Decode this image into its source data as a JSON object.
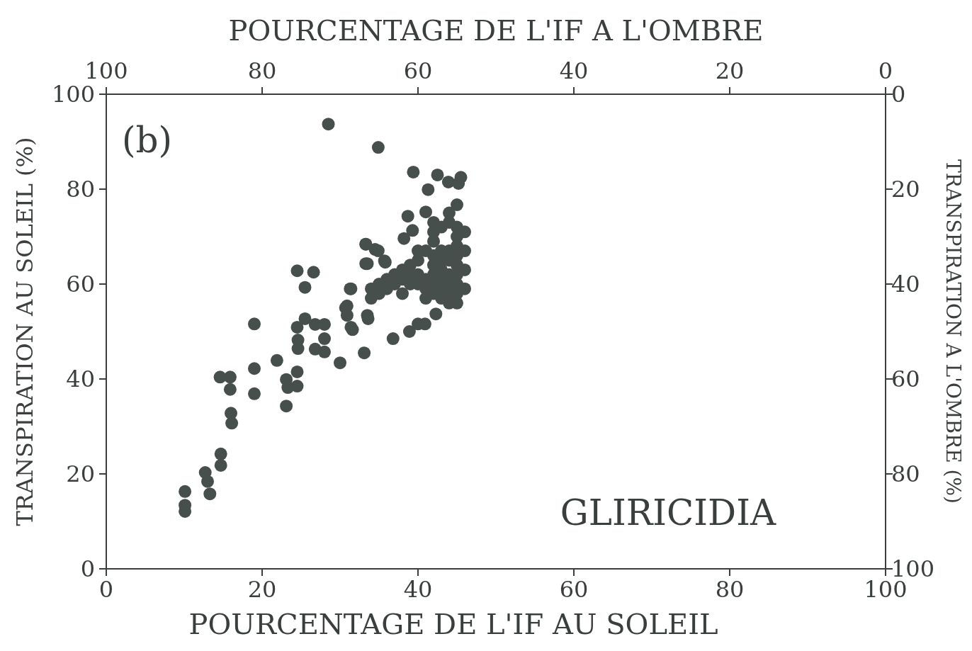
{
  "chart_data": {
    "type": "scatter",
    "xlabel": "POURCENTAGE DE L'IF AU SOLEIL",
    "ylabel": "TRANSPIRATION AU SOLEIL (%)",
    "x2label": "POURCENTAGE DE L'IF A L'OMBRE",
    "y2label": "TRANSPIRATION A L'OMBRE (%)",
    "annotations": [
      "(b)",
      "GLIRICIDIA"
    ],
    "xlim": [
      0,
      100
    ],
    "xticks": [
      0,
      20,
      40,
      60,
      80,
      100
    ],
    "ylim": [
      0,
      100
    ],
    "yticks": [
      0,
      20,
      40,
      60,
      80,
      100
    ],
    "x2lim": [
      100,
      0
    ],
    "x2ticks": [
      100,
      80,
      60,
      40,
      20,
      0
    ],
    "y2lim": [
      100,
      0
    ],
    "y2ticks": [
      0,
      20,
      40,
      60,
      80,
      100
    ],
    "grid": false,
    "marker": "circle",
    "series": [
      {
        "color": "#474f4c",
        "x": [
          10.1,
          10.1,
          10.1,
          12.7,
          13,
          13.3,
          14.7,
          14.7,
          14.6,
          15.9,
          15.9,
          16,
          16.1,
          19,
          19,
          19,
          21.9,
          23.1,
          23.1,
          23.3,
          24.5,
          24.5,
          24.5,
          26.6,
          25.5,
          24.5,
          25.5,
          24.6,
          24.6,
          26.8,
          28,
          28,
          26.8,
          28,
          30,
          33.1,
          28.5,
          34.9,
          30.9,
          31.4,
          31.4,
          30.9,
          33.3,
          33.3,
          34.5,
          35.7,
          33.6,
          36.8,
          38.9,
          40,
          40.9,
          42.3,
          39.4,
          42.5,
          43.9,
          45.5,
          45.2,
          41.3,
          45,
          38.7,
          41,
          39.3,
          38.2,
          33.3,
          34.9,
          33.5,
          35.8,
          31.3,
          30.7,
          31.6,
          33.5,
          34,
          35,
          36,
          37,
          36,
          38,
          37,
          38,
          39,
          39,
          40,
          39,
          40,
          40,
          41,
          41,
          42,
          42,
          42,
          43,
          43,
          44,
          44,
          45,
          45,
          45,
          44,
          45,
          44,
          45,
          44,
          45,
          45,
          45,
          44,
          43,
          42,
          42,
          43,
          42,
          43,
          44,
          45,
          43,
          41,
          40,
          38,
          35,
          34,
          41,
          43,
          46,
          46,
          46,
          46,
          42,
          44,
          42
        ],
        "values": [
          16.3,
          13.4,
          12.1,
          20.3,
          18.4,
          15.8,
          24.2,
          21.8,
          40.4,
          40.4,
          37.8,
          32.8,
          30.7,
          51.6,
          42.2,
          36.9,
          43.9,
          34.3,
          39.9,
          38.2,
          41.5,
          38.5,
          62.8,
          62.5,
          59.3,
          50.9,
          52.7,
          48.2,
          46.4,
          51.5,
          51.5,
          48.5,
          46.3,
          45.7,
          43.4,
          45.5,
          93.7,
          88.8,
          55.4,
          59,
          50.9,
          53.4,
          68.4,
          64.3,
          67.3,
          64.9,
          52.7,
          48.5,
          50,
          51.6,
          51.6,
          53.7,
          83.6,
          83,
          81.5,
          82.5,
          81.2,
          79.9,
          76.7,
          74.3,
          75.2,
          71.3,
          69.6,
          68.4,
          67,
          64.3,
          64.6,
          59,
          55,
          50.4,
          53.4,
          57,
          58,
          59,
          60,
          61,
          61,
          62,
          63,
          62,
          60,
          60,
          64,
          65,
          62,
          61,
          59,
          60,
          58,
          62,
          63,
          61,
          60,
          58,
          58,
          60,
          62,
          62,
          64,
          65,
          66,
          67,
          68,
          70,
          72,
          73,
          72,
          71,
          69,
          67,
          66,
          65,
          56,
          56,
          57,
          67,
          67,
          58,
          60,
          59,
          57,
          59,
          63,
          67,
          71,
          59,
          73,
          75,
          64
        ]
      }
    ]
  }
}
